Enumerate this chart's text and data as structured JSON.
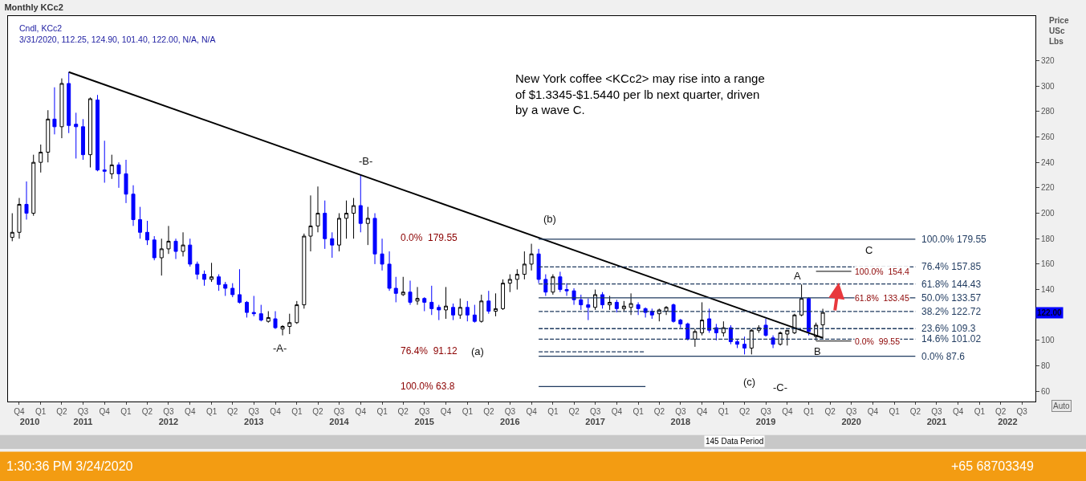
{
  "chart_data": {
    "type": "candlestick",
    "title": "Monthly KCc2",
    "subtitle": "Cndl, KCc2\n3/31/2020, 112.25, 124.90, 101.40, 122.00, N/A, N/A",
    "ylabel": "Price\nUSc\nLbs",
    "colors": [
      "#ffffff",
      "#ffffff",
      "#0000ff",
      "#ffffff",
      "#ffffff",
      "#ffffff",
      "#0000ff",
      "#ffffff",
      "#0000ff",
      "#0000ff",
      "#0000ff",
      "#ffffff",
      "#0000ff",
      "#0000ff",
      "#ffffff",
      "#0000ff",
      "#0000ff",
      "#0000ff",
      "#0000ff",
      "#0000ff",
      "#0000ff",
      "#ffffff",
      "#ffffff",
      "#0000ff",
      "#ffffff",
      "#0000ff",
      "#0000ff",
      "#0000ff",
      "#ffffff",
      "#0000ff",
      "#0000ff",
      "#0000ff",
      "#0000ff",
      "#0000ff",
      "#0000ff",
      "#0000ff",
      "#ffffff",
      "#0000ff",
      "#ffffff",
      "#ffffff",
      "#ffffff",
      "#ffffff",
      "#ffffff",
      "#ffffff",
      "#0000ff",
      "#0000ff",
      "#ffffff",
      "#ffffff",
      "#ffffff",
      "#0000ff",
      "#ffffff",
      "#0000ff",
      "#0000ff",
      "#0000ff",
      "#0000ff",
      "#ffffff",
      "#0000ff",
      "#ffffff",
      "#0000ff",
      "#0000ff",
      "#0000ff",
      "#ffffff",
      "#0000ff",
      "#ffffff",
      "#0000ff",
      "#0000ff",
      "#ffffff",
      "#0000ff",
      "#ffffff",
      "#ffffff",
      "#ffffff",
      "#ffffff",
      "#ffffff",
      "#ffffff",
      "#0000ff",
      "#0000ff",
      "#ffffff",
      "#0000ff",
      "#0000ff",
      "#0000ff",
      "#0000ff",
      "#0000ff",
      "#ffffff",
      "#0000ff",
      "#ffffff",
      "#0000ff",
      "#ffffff",
      "#ffffff",
      "#0000ff",
      "#0000ff",
      "#0000ff",
      "#ffffff",
      "#ffffff",
      "#0000ff",
      "#0000ff",
      "#0000ff",
      "#ffffff",
      "#ffffff",
      "#0000ff",
      "#0000ff",
      "#ffffff",
      "#0000ff",
      "#0000ff",
      "#0000ff",
      "#ffffff",
      "#ffffff",
      "#0000ff",
      "#0000ff",
      "#ffffff",
      "#ffffff",
      "#ffffff",
      "#ffffff",
      "#0000ff",
      "#ffffff",
      "#ffffff"
    ],
    "x": [
      "2010-09",
      "2010-10",
      "2010-11",
      "2010-12",
      "2011-01",
      "2011-02",
      "2011-03",
      "2011-04",
      "2011-05",
      "2011-06",
      "2011-07",
      "2011-08",
      "2011-09",
      "2011-10",
      "2011-11",
      "2011-12",
      "2012-01",
      "2012-02",
      "2012-03",
      "2012-04",
      "2012-05",
      "2012-06",
      "2012-07",
      "2012-08",
      "2012-09",
      "2012-10",
      "2012-11",
      "2012-12",
      "2013-01",
      "2013-02",
      "2013-03",
      "2013-04",
      "2013-05",
      "2013-06",
      "2013-07",
      "2013-08",
      "2013-09",
      "2013-10",
      "2013-11",
      "2013-12",
      "2014-01",
      "2014-02",
      "2014-03",
      "2014-04",
      "2014-05",
      "2014-06",
      "2014-07",
      "2014-08",
      "2014-09",
      "2014-10",
      "2014-11",
      "2014-12",
      "2015-01",
      "2015-02",
      "2015-03",
      "2015-04",
      "2015-05",
      "2015-06",
      "2015-07",
      "2015-08",
      "2015-09",
      "2015-10",
      "2015-11",
      "2015-12",
      "2016-01",
      "2016-02",
      "2016-03",
      "2016-04",
      "2016-05",
      "2016-06",
      "2016-07",
      "2016-08",
      "2016-09",
      "2016-10",
      "2016-11",
      "2016-12",
      "2017-01",
      "2017-02",
      "2017-03",
      "2017-04",
      "2017-05",
      "2017-06",
      "2017-07",
      "2017-08",
      "2017-09",
      "2017-10",
      "2017-11",
      "2017-12",
      "2018-01",
      "2018-02",
      "2018-03",
      "2018-04",
      "2018-05",
      "2018-06",
      "2018-07",
      "2018-08",
      "2018-09",
      "2018-10",
      "2018-11",
      "2018-12",
      "2019-01",
      "2019-02",
      "2019-03",
      "2019-04",
      "2019-05",
      "2019-06",
      "2019-07",
      "2019-08",
      "2019-09",
      "2019-10",
      "2019-11",
      "2019-12",
      "2020-01",
      "2020-02",
      "2020-03"
    ],
    "ohlc": [
      [
        181,
        200,
        178,
        185
      ],
      [
        185,
        212,
        180,
        207
      ],
      [
        207,
        225,
        195,
        200
      ],
      [
        200,
        246,
        198,
        240
      ],
      [
        240,
        254,
        232,
        248
      ],
      [
        248,
        281,
        240,
        274
      ],
      [
        274,
        299,
        262,
        268
      ],
      [
        268,
        306,
        259,
        302
      ],
      [
        302,
        311,
        263,
        269
      ],
      [
        270,
        279,
        243,
        268
      ],
      [
        268,
        274,
        242,
        246
      ],
      [
        246,
        291,
        236,
        290
      ],
      [
        289,
        293,
        233,
        234
      ],
      [
        234,
        257,
        224,
        233
      ],
      [
        231,
        246,
        227,
        238
      ],
      [
        238,
        240,
        220,
        231
      ],
      [
        231,
        242,
        208,
        215
      ],
      [
        215,
        222,
        190,
        195
      ],
      [
        195,
        205,
        180,
        185
      ],
      [
        185,
        194,
        175,
        179
      ],
      [
        179,
        182,
        163,
        165
      ],
      [
        165,
        180,
        151,
        172
      ],
      [
        172,
        190,
        168,
        178
      ],
      [
        178,
        180,
        164,
        170
      ],
      [
        170,
        185,
        166,
        175
      ],
      [
        175,
        180,
        158,
        160
      ],
      [
        160,
        162,
        148,
        152
      ],
      [
        152,
        155,
        143,
        148
      ],
      [
        148,
        161,
        146,
        150
      ],
      [
        150,
        152,
        139,
        144
      ],
      [
        144,
        146,
        135,
        141
      ],
      [
        141,
        145,
        134,
        136
      ],
      [
        136,
        156,
        129,
        130
      ],
      [
        130,
        131,
        118,
        122
      ],
      [
        122,
        135,
        119,
        121
      ],
      [
        121,
        128,
        115,
        116
      ],
      [
        115,
        123,
        114,
        118
      ],
      [
        117,
        123,
        109,
        110
      ],
      [
        109,
        112,
        104,
        111
      ],
      [
        111,
        121,
        105,
        114
      ],
      [
        114,
        131,
        113,
        128
      ],
      [
        128,
        184,
        125,
        182
      ],
      [
        182,
        214,
        170,
        190
      ],
      [
        190,
        221,
        185,
        200
      ],
      [
        200,
        210,
        172,
        180
      ],
      [
        180,
        185,
        165,
        175
      ],
      [
        175,
        200,
        170,
        196
      ],
      [
        196,
        210,
        180,
        200
      ],
      [
        200,
        212,
        180,
        206
      ],
      [
        206,
        230,
        185,
        192
      ],
      [
        192,
        205,
        175,
        196
      ],
      [
        196,
        200,
        160,
        168
      ],
      [
        168,
        180,
        155,
        160
      ],
      [
        160,
        170,
        139,
        141
      ],
      [
        141,
        150,
        130,
        137
      ],
      [
        136,
        150,
        135,
        138
      ],
      [
        138,
        147,
        128,
        130
      ],
      [
        131,
        142,
        128,
        133
      ],
      [
        133,
        134,
        123,
        130
      ],
      [
        130,
        143,
        120,
        125
      ],
      [
        126,
        128,
        116,
        124
      ],
      [
        124,
        142,
        117,
        127
      ],
      [
        126,
        129,
        116,
        120
      ],
      [
        120,
        133,
        117,
        126
      ],
      [
        126,
        131,
        115,
        120
      ],
      [
        120,
        128,
        114,
        115
      ],
      [
        115,
        136,
        114,
        131
      ],
      [
        131,
        139,
        121,
        123
      ],
      [
        123,
        137,
        119,
        125
      ],
      [
        125,
        148,
        124,
        145
      ],
      [
        145,
        152,
        138,
        148
      ],
      [
        148,
        156,
        140,
        152
      ],
      [
        152,
        170,
        148,
        160
      ],
      [
        160,
        176,
        155,
        168
      ],
      [
        168,
        172,
        145,
        148
      ],
      [
        148,
        152,
        135,
        138
      ],
      [
        138,
        152,
        136,
        150
      ],
      [
        150,
        154,
        138,
        140
      ],
      [
        140,
        145,
        135,
        139
      ],
      [
        139,
        141,
        128,
        132
      ],
      [
        132,
        136,
        124,
        128
      ],
      [
        128,
        133,
        116,
        126
      ],
      [
        126,
        140,
        124,
        136
      ],
      [
        136,
        138,
        125,
        128
      ],
      [
        128,
        135,
        124,
        130
      ],
      [
        130,
        132,
        122,
        125
      ],
      [
        125,
        131,
        123,
        127
      ],
      [
        126,
        137,
        120,
        129
      ],
      [
        128,
        130,
        120,
        125
      ],
      [
        125,
        126,
        118,
        122
      ],
      [
        123,
        125,
        117,
        120
      ],
      [
        121,
        125,
        115,
        124
      ],
      [
        123,
        127,
        120,
        126
      ],
      [
        128,
        129,
        114,
        115
      ],
      [
        116,
        117,
        110,
        113
      ],
      [
        113,
        114,
        100,
        101
      ],
      [
        101,
        109,
        95,
        107
      ],
      [
        106,
        130,
        104,
        116
      ],
      [
        117,
        125,
        106,
        108
      ],
      [
        110,
        113,
        100,
        106
      ],
      [
        106,
        115,
        103,
        110
      ],
      [
        110,
        112,
        97,
        99
      ],
      [
        99,
        101,
        94,
        97
      ],
      [
        97,
        103,
        89,
        94
      ],
      [
        94,
        109,
        89,
        108
      ],
      [
        108,
        112,
        106,
        110
      ],
      [
        112,
        117,
        103,
        104
      ],
      [
        102,
        104,
        94,
        97
      ],
      [
        97,
        107,
        96,
        106
      ],
      [
        105,
        108,
        96,
        108
      ],
      [
        106,
        121,
        105,
        120
      ],
      [
        120,
        144,
        119,
        133
      ],
      [
        133,
        134,
        104,
        107
      ],
      [
        103,
        114,
        100,
        112
      ],
      [
        112.25,
        124.9,
        101.4,
        122
      ]
    ],
    "series": [
      {
        "type": "line",
        "x": [
          "2011-05",
          "2020-03"
        ],
        "values": [
          311,
          102
        ],
        "color": "#000000",
        "line_style": "solid"
      },
      {
        "type": "line",
        "x": [
          "2016-11",
          "2021-04"
        ],
        "values": [
          179.55,
          179.55
        ],
        "color": "#1f3a5f",
        "line_style": "solid"
      },
      {
        "type": "line",
        "x": [
          "2016-11",
          "2021-04"
        ],
        "values": [
          157.85,
          157.85
        ],
        "color": "#1f3a5f",
        "line_style": "dashed"
      },
      {
        "type": "line",
        "x": [
          "2016-11",
          "2021-04"
        ],
        "values": [
          144.43,
          144.43
        ],
        "color": "#1f3a5f",
        "line_style": "dashed"
      },
      {
        "type": "line",
        "x": [
          "2016-11",
          "2021-04"
        ],
        "values": [
          133.57,
          133.57
        ],
        "color": "#1f3a5f",
        "line_style": "solid"
      },
      {
        "type": "line",
        "x": [
          "2016-11",
          "2021-04"
        ],
        "values": [
          122.72,
          122.72
        ],
        "color": "#1f3a5f",
        "line_style": "dashed"
      },
      {
        "type": "line",
        "x": [
          "2016-11",
          "2021-04"
        ],
        "values": [
          109.3,
          109.3
        ],
        "color": "#1f3a5f",
        "line_style": "dashed"
      },
      {
        "type": "line",
        "x": [
          "2016-11",
          "2021-04"
        ],
        "values": [
          101.02,
          101.02
        ],
        "color": "#1f3a5f",
        "line_style": "dashed"
      },
      {
        "type": "line",
        "x": [
          "2016-11",
          "2021-04"
        ],
        "values": [
          87.6,
          87.6
        ],
        "color": "#1f3a5f",
        "line_style": "solid"
      },
      {
        "type": "line",
        "x": [
          "2016-11",
          "2018-02"
        ],
        "values": [
          91.12,
          91.12
        ],
        "color": "#1f3a5f",
        "line_style": "dashed"
      },
      {
        "type": "line",
        "x": [
          "2016-11",
          "2018-02"
        ],
        "values": [
          63.8,
          63.8
        ],
        "color": "#1f3a5f",
        "line_style": "solid"
      },
      {
        "type": "line",
        "x": [
          "2020-02",
          "2020-07"
        ],
        "values": [
          154.4,
          154.4
        ],
        "color": "#333333",
        "line_style": "solid"
      },
      {
        "type": "line",
        "x": [
          "2020-02",
          "2020-07"
        ],
        "values": [
          99.55,
          99.55
        ],
        "color": "#333333",
        "line_style": "solid"
      }
    ],
    "annotations": [
      "New York coffee <KCc2> may rise into a range\nof $1.3345-$1.5440 per lb next quarter, driven\nby a wave C.",
      "145 Data Period",
      "Auto",
      "1:30:36 PM 3/24/2020",
      "+65 68703349",
      "-A-",
      "-B-",
      "-C-",
      "(a)",
      "(b)",
      "(c)",
      "A",
      "B",
      "C",
      "0.0%  179.55",
      "76.4%  91.12",
      "100.0% 63.8",
      {
        "text": "100.0%  154.4",
        "x": "2020-07",
        "y": 154.4
      },
      {
        "text": "61.8%  133.45",
        "x": "2020-07",
        "y": 133.45
      },
      {
        "text": "0.0%  99.55",
        "x": "2020-07",
        "y": 99.55
      },
      {
        "text": "100.0% 179.55",
        "x": "2021-04",
        "y": 179.55
      },
      {
        "text": "76.4% 157.85",
        "x": "2021-04",
        "y": 157.85
      },
      {
        "text": "61.8% 144.43",
        "x": "2021-04",
        "y": 144.43
      },
      {
        "text": "50.0% 133.57",
        "x": "2021-04",
        "y": 133.57
      },
      {
        "text": "38.2% 122.72",
        "x": "2021-04",
        "y": 122.72
      },
      {
        "text": "23.6% 109.3",
        "x": "2021-04",
        "y": 109.3
      },
      {
        "text": "14.6% 101.02",
        "x": "2021-04",
        "y": 101.02
      },
      {
        "text": "0.0% 87.6",
        "x": "2021-04",
        "y": 87.6
      },
      {
        "text": "122.00",
        "y": 122
      }
    ],
    "xlim": [
      "2010-08-14",
      "2022-08-28"
    ],
    "xticks": [
      {
        "value": "2010-10",
        "label": "Q4"
      },
      {
        "value": "2011-01",
        "label": "Q1"
      },
      {
        "value": "2011-04",
        "label": "Q2"
      },
      {
        "value": "2011-07",
        "label": "Q3"
      },
      {
        "value": "2011-10",
        "label": "Q4"
      },
      {
        "value": "2012-01",
        "label": "Q1"
      },
      {
        "value": "2012-04",
        "label": "Q2"
      },
      {
        "value": "2012-07",
        "label": "Q3"
      },
      {
        "value": "2012-10",
        "label": "Q4"
      },
      {
        "value": "2013-01",
        "label": "Q1"
      },
      {
        "value": "2013-04",
        "label": "Q2"
      },
      {
        "value": "2013-07",
        "label": "Q3"
      },
      {
        "value": "2013-10",
        "label": "Q4"
      },
      {
        "value": "2014-01",
        "label": "Q1"
      },
      {
        "value": "2014-04",
        "label": "Q2"
      },
      {
        "value": "2014-07",
        "label": "Q3"
      },
      {
        "value": "2014-10",
        "label": "Q4"
      },
      {
        "value": "2015-01",
        "label": "Q1"
      },
      {
        "value": "2015-04",
        "label": "Q2"
      },
      {
        "value": "2015-07",
        "label": "Q3"
      },
      {
        "value": "2015-10",
        "label": "Q4"
      },
      {
        "value": "2016-01",
        "label": "Q1"
      },
      {
        "value": "2016-04",
        "label": "Q2"
      },
      {
        "value": "2016-07",
        "label": "Q3"
      },
      {
        "value": "2016-10",
        "label": "Q4"
      },
      {
        "value": "2017-01",
        "label": "Q1"
      },
      {
        "value": "2017-04",
        "label": "Q2"
      },
      {
        "value": "2017-07",
        "label": "Q3"
      },
      {
        "value": "2017-10",
        "label": "Q4"
      },
      {
        "value": "2018-01",
        "label": "Q1"
      },
      {
        "value": "2018-04",
        "label": "Q2"
      },
      {
        "value": "2018-07",
        "label": "Q3"
      },
      {
        "value": "2018-10",
        "label": "Q4"
      },
      {
        "value": "2019-01",
        "label": "Q1"
      },
      {
        "value": "2019-04",
        "label": "Q2"
      },
      {
        "value": "2019-07",
        "label": "Q3"
      },
      {
        "value": "2019-10",
        "label": "Q4"
      },
      {
        "value": "2020-01",
        "label": "Q1"
      },
      {
        "value": "2020-04",
        "label": "Q2"
      },
      {
        "value": "2020-07",
        "label": "Q3"
      },
      {
        "value": "2020-10",
        "label": "Q4"
      },
      {
        "value": "2021-01",
        "label": "Q1"
      },
      {
        "value": "2021-04",
        "label": "Q2"
      },
      {
        "value": "2021-07",
        "label": "Q3"
      },
      {
        "value": "2021-10",
        "label": "Q4"
      },
      {
        "value": "2022-01",
        "label": "Q1"
      },
      {
        "value": "2022-04",
        "label": "Q2"
      },
      {
        "value": "2022-07",
        "label": "Q3"
      }
    ],
    "x2lim": [
      "2010-08-14",
      "2022-08-28"
    ],
    "x2ticks": [
      {
        "value": "2010-11-15",
        "label": "2010"
      },
      {
        "value": "2011-07-01",
        "label": "2011"
      },
      {
        "value": "2012-07-01",
        "label": "2012"
      },
      {
        "value": "2013-07-01",
        "label": "2013"
      },
      {
        "value": "2014-07-01",
        "label": "2014"
      },
      {
        "value": "2015-07-01",
        "label": "2015"
      },
      {
        "value": "2016-07-01",
        "label": "2016"
      },
      {
        "value": "2017-07-01",
        "label": "2017"
      },
      {
        "value": "2018-07-01",
        "label": "2018"
      },
      {
        "value": "2019-07-01",
        "label": "2019"
      },
      {
        "value": "2020-07-01",
        "label": "2020"
      },
      {
        "value": "2021-07-01",
        "label": "2021"
      },
      {
        "value": "2022-05-01",
        "label": "2022"
      }
    ],
    "ylim": [
      52,
      355
    ],
    "yticks": [
      60,
      80,
      100,
      140,
      160,
      180,
      200,
      220,
      240,
      260,
      280,
      300,
      320
    ]
  }
}
